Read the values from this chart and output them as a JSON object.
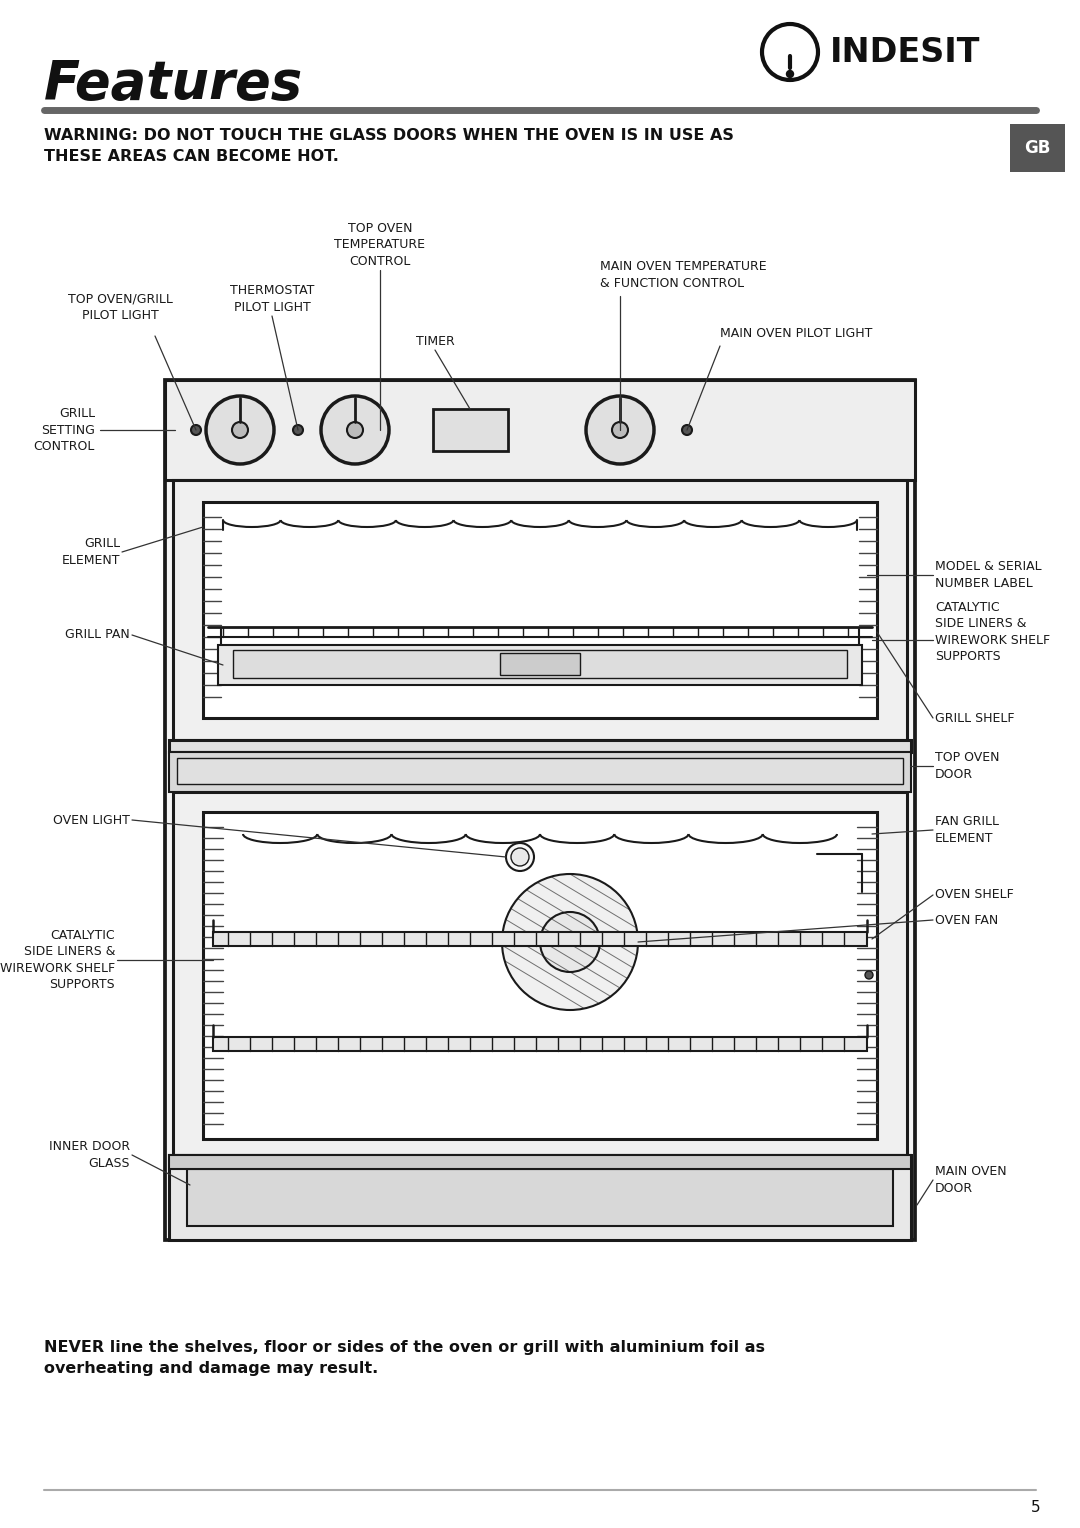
{
  "page_title": "Features",
  "brand": "INDESIT",
  "warning_text": "WARNING: DO NOT TOUCH THE GLASS DOORS WHEN THE OVEN IS IN USE AS\nTHESE AREAS CAN BECOME HOT.",
  "bottom_text": "NEVER line the shelves, floor or sides of the oven or grill with aluminium foil as\noverheating and damage may result.",
  "page_number": "5",
  "gb_label": "GB",
  "bg_color": "#ffffff",
  "line_color": "#1a1a1a",
  "lw_main": 2.2,
  "lw_inner": 1.5,
  "lw_thin": 1.0,
  "lw_anno": 0.9
}
